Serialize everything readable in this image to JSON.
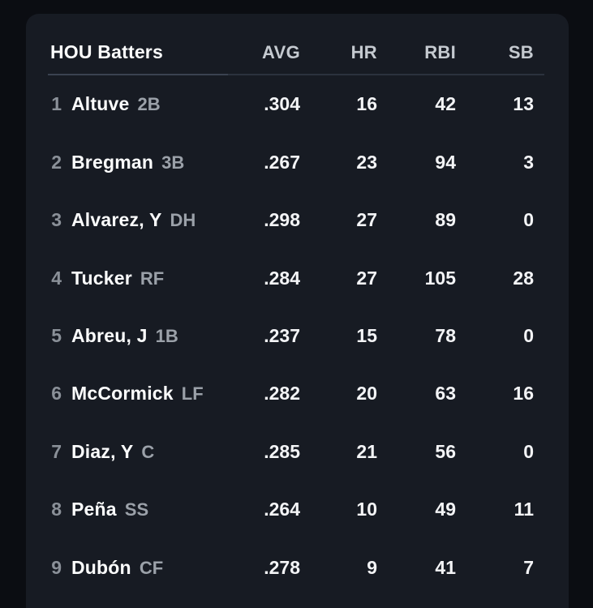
{
  "table": {
    "title": "HOU Batters",
    "columns": [
      "AVG",
      "HR",
      "RBI",
      "SB"
    ],
    "rows": [
      {
        "rank": "1",
        "name": "Altuve",
        "pos": "2B",
        "avg": ".304",
        "hr": "16",
        "rbi": "42",
        "sb": "13"
      },
      {
        "rank": "2",
        "name": "Bregman",
        "pos": "3B",
        "avg": ".267",
        "hr": "23",
        "rbi": "94",
        "sb": "3"
      },
      {
        "rank": "3",
        "name": "Alvarez, Y",
        "pos": "DH",
        "avg": ".298",
        "hr": "27",
        "rbi": "89",
        "sb": "0"
      },
      {
        "rank": "4",
        "name": "Tucker",
        "pos": "RF",
        "avg": ".284",
        "hr": "27",
        "rbi": "105",
        "sb": "28"
      },
      {
        "rank": "5",
        "name": "Abreu, J",
        "pos": "1B",
        "avg": ".237",
        "hr": "15",
        "rbi": "78",
        "sb": "0"
      },
      {
        "rank": "6",
        "name": "McCormick",
        "pos": "LF",
        "avg": ".282",
        "hr": "20",
        "rbi": "63",
        "sb": "16"
      },
      {
        "rank": "7",
        "name": "Diaz, Y",
        "pos": "C",
        "avg": ".285",
        "hr": "21",
        "rbi": "56",
        "sb": "0"
      },
      {
        "rank": "8",
        "name": "Peña",
        "pos": "SS",
        "avg": ".264",
        "hr": "10",
        "rbi": "49",
        "sb": "11"
      },
      {
        "rank": "9",
        "name": "Dubón",
        "pos": "CF",
        "avg": ".278",
        "hr": "9",
        "rbi": "41",
        "sb": "7"
      }
    ]
  },
  "colors": {
    "backdrop": "#0b0d12",
    "panel": "#171b23",
    "primary_text": "#fcfdfd",
    "secondary_text": "#9ba1a9",
    "header_text": "#c5cad0",
    "divider_strong": "#3a4250",
    "divider_soft": "#2b323d"
  }
}
